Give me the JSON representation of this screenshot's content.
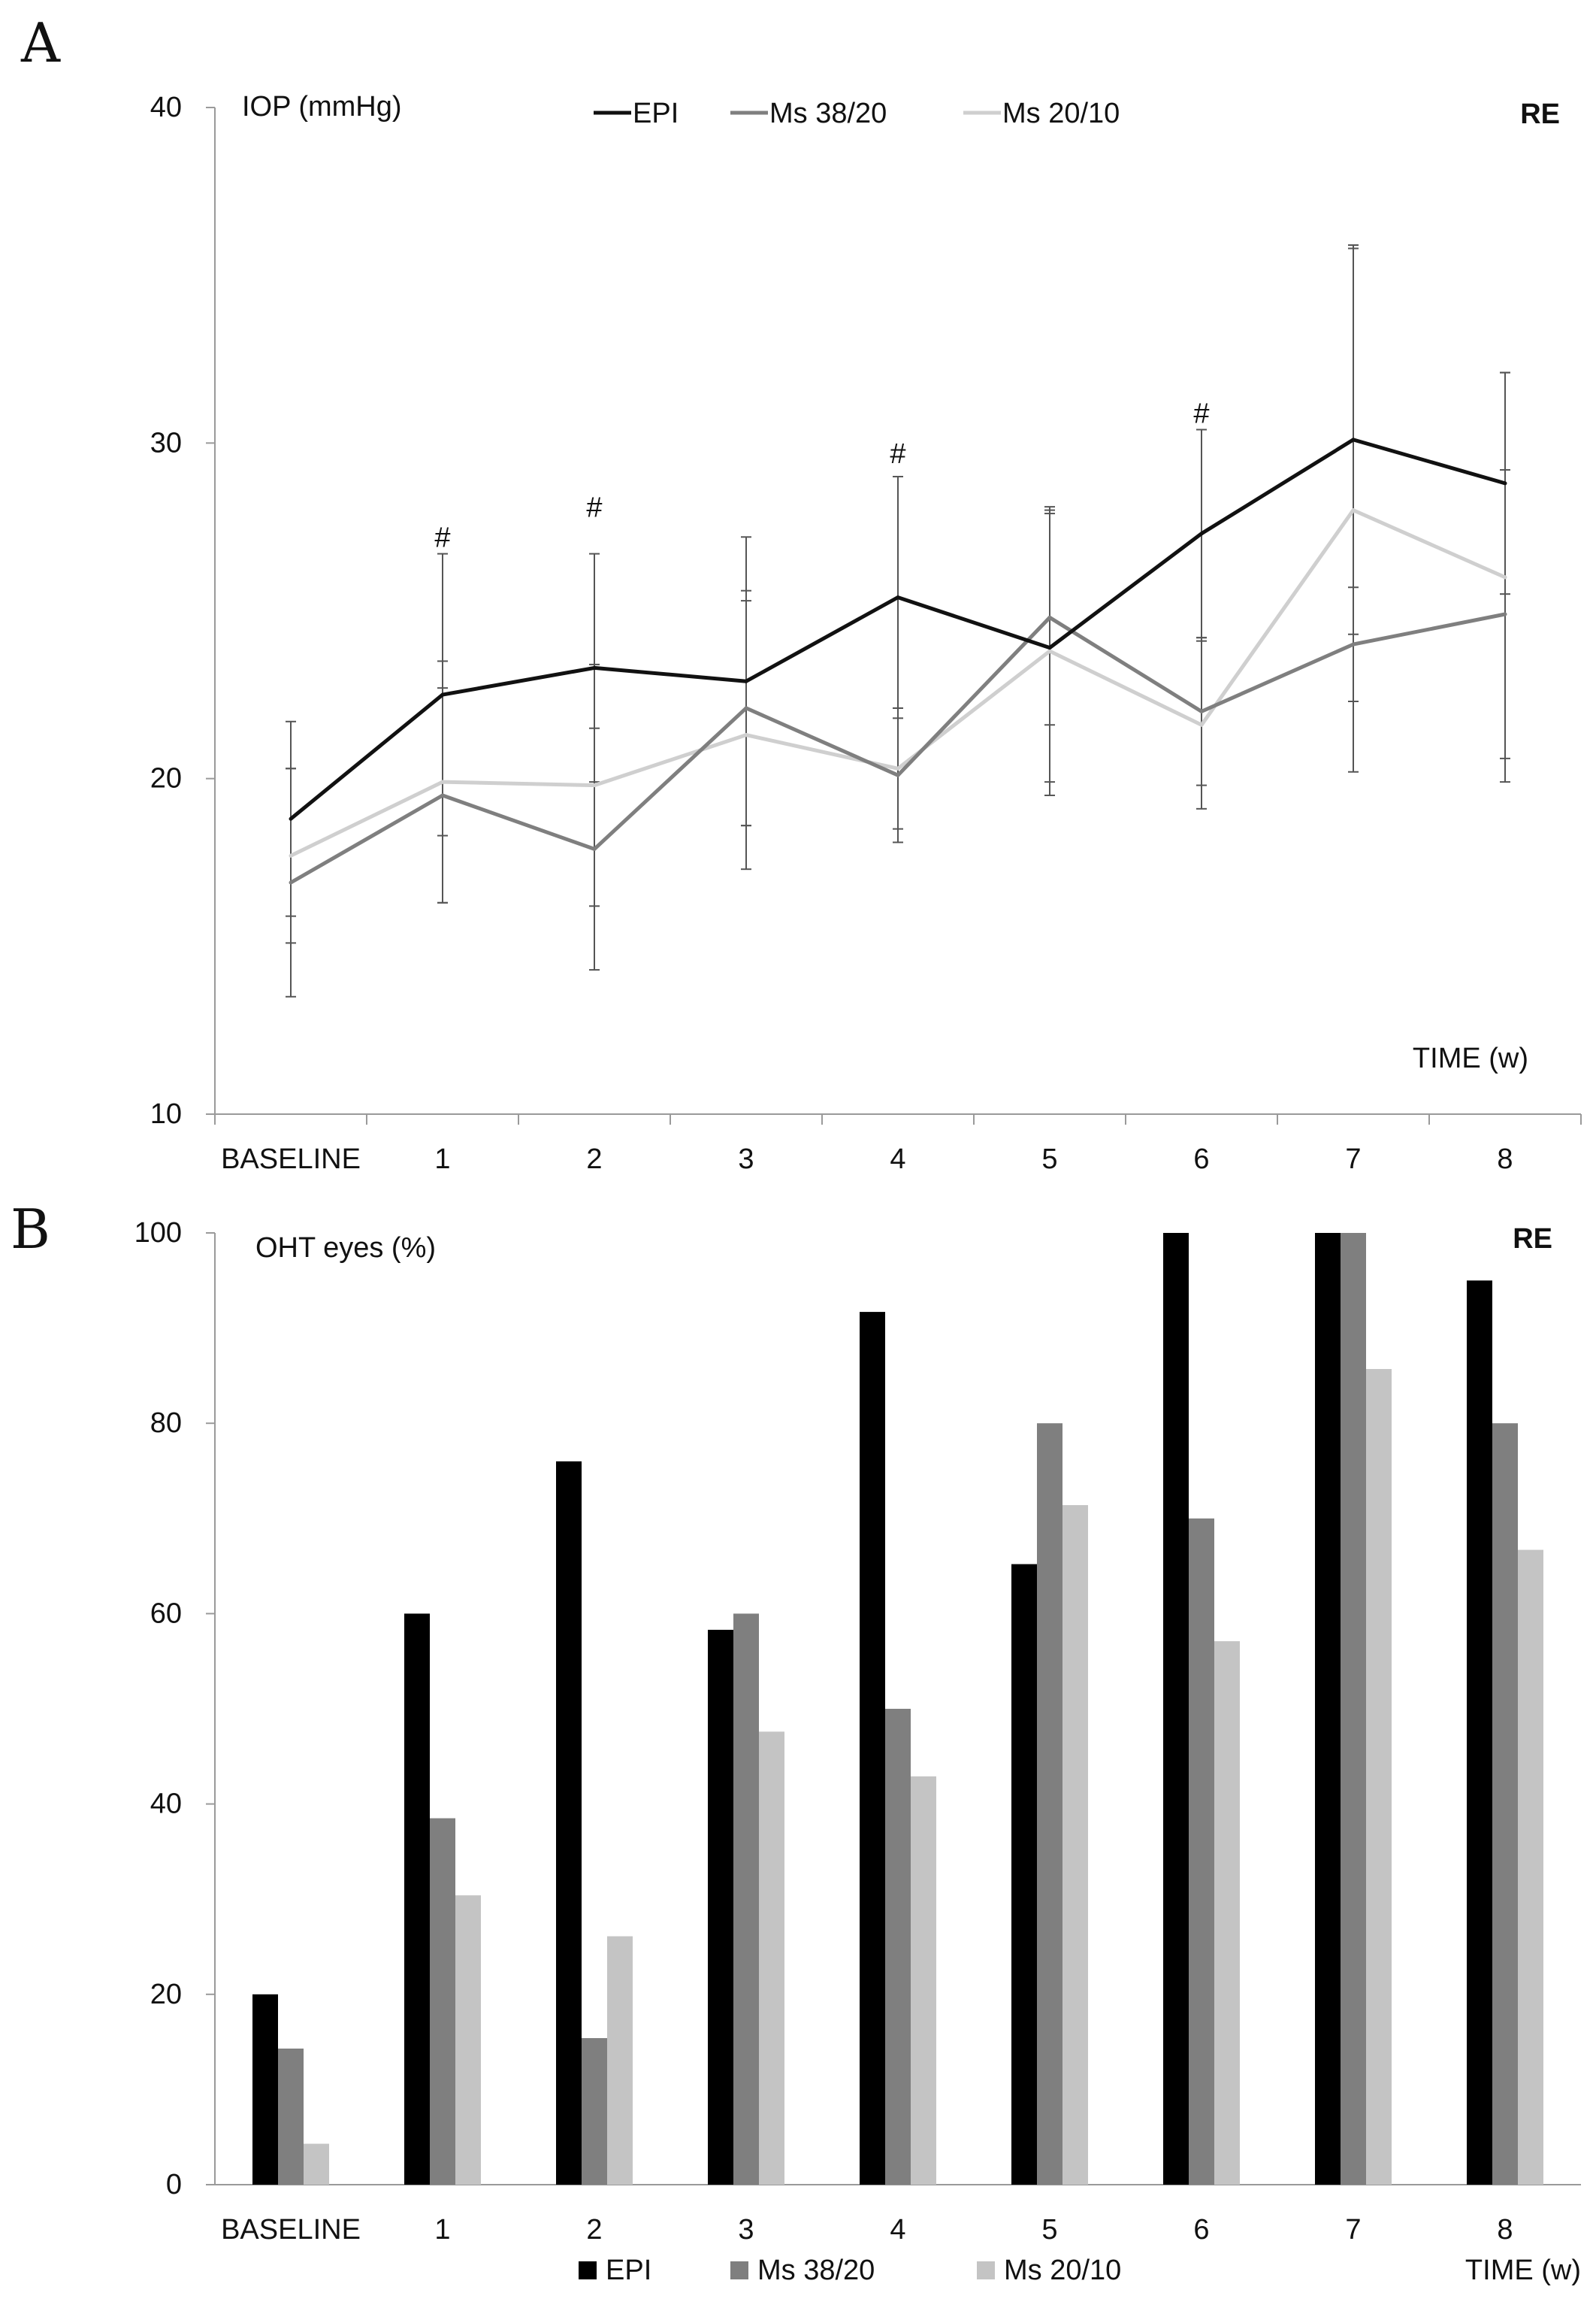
{
  "chart_data": [
    {
      "panel": "A",
      "type": "line",
      "ylabel": "IOP (mmHg)",
      "xlabel": "TIME (w)",
      "corner_label": "RE",
      "categories": [
        "BASELINE",
        "1",
        "2",
        "3",
        "4",
        "5",
        "6",
        "7",
        "8"
      ],
      "ylim": [
        10,
        40
      ],
      "yticks": [
        10,
        20,
        30,
        40
      ],
      "grid": false,
      "legend_position": "top",
      "series": [
        {
          "name": "EPI",
          "color": "#111111",
          "values": [
            18.8,
            22.5,
            23.3,
            22.9,
            25.4,
            23.9,
            27.3,
            30.1,
            28.8
          ],
          "err": [
            2.9,
            4.2,
            3.4,
            4.3,
            3.6,
            4.0,
            3.1,
            5.8,
            3.3
          ]
        },
        {
          "name": "Ms 38/20",
          "color": "#7f7f7f",
          "values": [
            16.9,
            19.5,
            17.9,
            22.1,
            20.1,
            24.8,
            22.0,
            24.0,
            24.9
          ],
          "err": [
            3.4,
            3.2,
            3.6,
            3.5,
            2.0,
            3.2,
            2.2,
            1.7,
            4.3
          ]
        },
        {
          "name": "Ms 20/10",
          "color": "#cfcfcf",
          "values": [
            17.7,
            19.9,
            19.8,
            21.3,
            20.3,
            23.8,
            21.6,
            28.0,
            26.0
          ],
          "err": [
            2.6,
            3.6,
            3.6,
            4.0,
            1.8,
            4.3,
            2.5,
            7.8,
            6.1
          ]
        }
      ],
      "annotations": [
        {
          "text": "#",
          "category": "1",
          "y": 26.9
        },
        {
          "text": "#",
          "category": "2",
          "y": 27.8
        },
        {
          "text": "#",
          "category": "4",
          "y": 29.4
        },
        {
          "text": "#",
          "category": "6",
          "y": 30.6
        }
      ]
    },
    {
      "panel": "B",
      "type": "bar",
      "ylabel": "OHT eyes (%)",
      "xlabel": "TIME (w)",
      "corner_label": "RE",
      "categories": [
        "BASELINE",
        "1",
        "2",
        "3",
        "4",
        "5",
        "6",
        "7",
        "8"
      ],
      "ylim": [
        0,
        100
      ],
      "yticks": [
        0,
        20,
        40,
        60,
        80,
        100
      ],
      "grid": false,
      "legend_position": "bottom",
      "series": [
        {
          "name": "EPI",
          "color": "#000000",
          "values": [
            20,
            60,
            76,
            58.3,
            91.7,
            65.2,
            100,
            100,
            95
          ]
        },
        {
          "name": "Ms 38/20",
          "color": "#7f7f7f",
          "values": [
            14.3,
            38.5,
            15.4,
            60,
            50,
            80,
            70,
            100,
            80
          ]
        },
        {
          "name": "Ms 20/10",
          "color": "#c4c4c4",
          "values": [
            4.3,
            30.4,
            26.1,
            47.6,
            42.9,
            71.4,
            57.1,
            85.7,
            66.7
          ]
        }
      ]
    }
  ]
}
